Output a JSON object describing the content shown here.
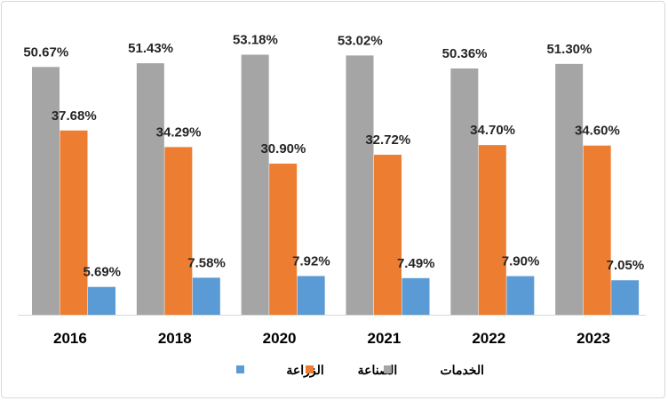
{
  "chart_data": {
    "type": "bar",
    "title": "",
    "xlabel": "",
    "ylabel": "",
    "ylim": [
      0,
      60
    ],
    "grid": false,
    "legend_position": "bottom",
    "categories": [
      "2016",
      "2018",
      "2020",
      "2021",
      "2022",
      "2023"
    ],
    "series": [
      {
        "name": "الخدمات",
        "color": "#A5A5A5",
        "values": [
          50.67,
          51.43,
          53.18,
          53.02,
          50.36,
          51.3
        ],
        "labels": [
          "50.67%",
          "51.43%",
          "53.18%",
          "53.02%",
          "50.36%",
          "51.30%"
        ]
      },
      {
        "name": "الصناعة",
        "color": "#ED7D31",
        "values": [
          37.68,
          34.29,
          30.9,
          32.72,
          34.7,
          34.6
        ],
        "labels": [
          "37.68%",
          "34.29%",
          "30.90%",
          "32.72%",
          "34.70%",
          "34.60%"
        ]
      },
      {
        "name": "الزراعة",
        "color": "#5B9BD5",
        "values": [
          5.69,
          7.58,
          7.92,
          7.49,
          7.9,
          7.05
        ],
        "labels": [
          "5.69%",
          "7.58%",
          "7.92%",
          "7.49%",
          "7.90%",
          "7.05%"
        ]
      }
    ]
  }
}
